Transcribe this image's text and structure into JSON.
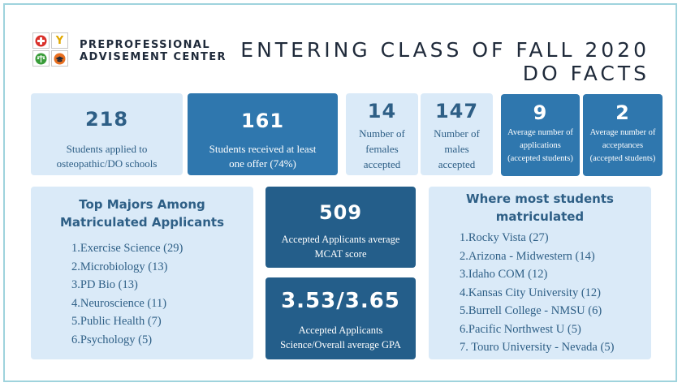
{
  "header": {
    "org_line1": "PREPROFESSIONAL",
    "org_line2": "ADVISEMENT CENTER",
    "title_line1": "ENTERING CLASS OF FALL 2020",
    "title_line2": "DO FACTS",
    "logo": {
      "letter": "Y",
      "icons": [
        "medical-cross-icon",
        "letter-y-icon",
        "scales-icon",
        "graduation-cap-icon"
      ],
      "colors": {
        "cross": "#d9302a",
        "y": "#f2b705",
        "scales": "#3a9d3a",
        "cap": "#e86f1f"
      }
    }
  },
  "stats": [
    {
      "value": "218",
      "label": "Students applied to osteopathic/DO schools"
    },
    {
      "value": "161",
      "label": "Students received at least one offer (74%)"
    },
    {
      "value": "14",
      "label": "Number of females accepted"
    },
    {
      "value": "147",
      "label": "Number of males accepted"
    },
    {
      "value": "9",
      "label": "Average number of applications (accepted students)"
    },
    {
      "value": "2",
      "label": "Average number of acceptances (accepted students)"
    }
  ],
  "majors": {
    "title_line1": "Top Majors Among",
    "title_line2": "Matriculated Applicants",
    "items": [
      {
        "num": "1.",
        "text": "Exercise Science (29)"
      },
      {
        "num": "2.",
        "text": "Microbiology (13)"
      },
      {
        "num": "3.",
        "text": "PD Bio (13)"
      },
      {
        "num": "4.",
        "text": "Neuroscience (11)"
      },
      {
        "num": "5.",
        "text": "Public Health (7)"
      },
      {
        "num": "6.",
        "text": "Psychology (5)"
      }
    ]
  },
  "mcat": {
    "value": "509",
    "label": "Accepted Applicants average MCAT score"
  },
  "gpa": {
    "value": "3.53/3.65",
    "label": "Accepted Applicants Science/Overall average GPA"
  },
  "schools": {
    "title_line1": "Where most students",
    "title_line2": "matriculated",
    "items": [
      {
        "num": "1.",
        "text": "Rocky Vista (27)"
      },
      {
        "num": "2.",
        "text": "Arizona - Midwestern (14)"
      },
      {
        "num": "3.",
        "text": "Idaho COM (12)"
      },
      {
        "num": "4.",
        "text": "Kansas City University (12)"
      },
      {
        "num": "5.",
        "text": "Burrell College - NMSU (6)"
      },
      {
        "num": "6.",
        "text": "Pacific Northwest U  (5)"
      },
      {
        "num": "7. ",
        "text": "Touro University - Nevada (5)"
      }
    ]
  },
  "colors": {
    "light_box": "#daeaf8",
    "mid_box": "#2f77ae",
    "dark_box": "#245e8a",
    "light_text": "#2e5f86",
    "frame": "#9fd3dd"
  }
}
